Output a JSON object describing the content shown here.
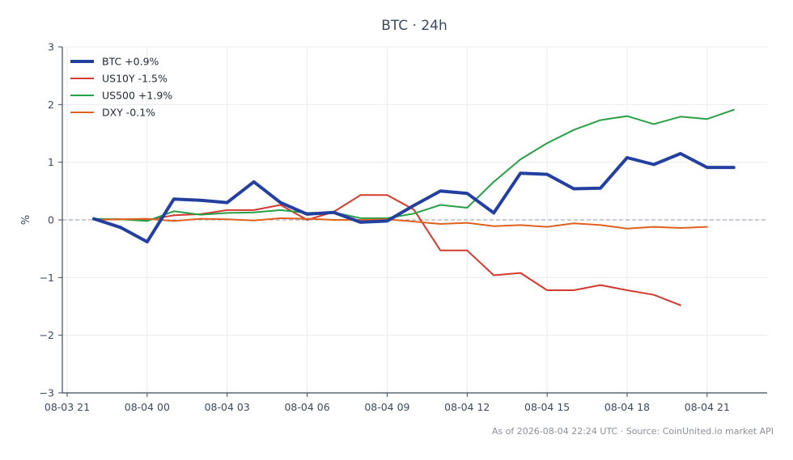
{
  "chart_data": {
    "type": "line",
    "title": "BTC · 24h",
    "xlabel": "",
    "ylabel": "%",
    "ylim": [
      -3,
      3
    ],
    "yticks": [
      3,
      2,
      1,
      0,
      -1,
      -2,
      -3
    ],
    "ytick_labels": [
      "3",
      "2",
      "1",
      "0",
      "−1",
      "−2",
      "−3"
    ],
    "x_range": [
      "2026-08-03 21:00",
      "2026-08-04 23:15"
    ],
    "xticks": [
      {
        "time": "2026-08-03 21:00",
        "label": "08-03 21"
      },
      {
        "time": "2026-08-04 00:00",
        "label": "08-04 00"
      },
      {
        "time": "2026-08-04 03:00",
        "label": "08-04 03"
      },
      {
        "time": "2026-08-04 06:00",
        "label": "08-04 06"
      },
      {
        "time": "2026-08-04 09:00",
        "label": "08-04 09"
      },
      {
        "time": "2026-08-04 12:00",
        "label": "08-04 12"
      },
      {
        "time": "2026-08-04 15:00",
        "label": "08-04 15"
      },
      {
        "time": "2026-08-04 18:00",
        "label": "08-04 18"
      },
      {
        "time": "2026-08-04 21:00",
        "label": "08-04 21"
      }
    ],
    "grid": true,
    "zero_line": "dashed",
    "legend_position": "top-left",
    "series": [
      {
        "name": "BTC +0.9%",
        "color": "#2340a0",
        "emphasis": "thick",
        "points": [
          [
            "2026-08-03 22:00",
            0.02
          ],
          [
            "2026-08-03 23:00",
            -0.13
          ],
          [
            "2026-08-04 00:00",
            -0.38
          ],
          [
            "2026-08-04 01:00",
            0.36
          ],
          [
            "2026-08-04 02:00",
            0.34
          ],
          [
            "2026-08-04 03:00",
            0.3
          ],
          [
            "2026-08-04 04:00",
            0.66
          ],
          [
            "2026-08-04 05:00",
            0.3
          ],
          [
            "2026-08-04 06:00",
            0.1
          ],
          [
            "2026-08-04 07:00",
            0.13
          ],
          [
            "2026-08-04 08:00",
            -0.04
          ],
          [
            "2026-08-04 09:00",
            -0.02
          ],
          [
            "2026-08-04 10:00",
            0.25
          ],
          [
            "2026-08-04 11:00",
            0.5
          ],
          [
            "2026-08-04 12:00",
            0.46
          ],
          [
            "2026-08-04 13:00",
            0.12
          ],
          [
            "2026-08-04 14:00",
            0.81
          ],
          [
            "2026-08-04 15:00",
            0.79
          ],
          [
            "2026-08-04 16:00",
            0.54
          ],
          [
            "2026-08-04 17:00",
            0.55
          ],
          [
            "2026-08-04 18:00",
            1.08
          ],
          [
            "2026-08-04 19:00",
            0.96
          ],
          [
            "2026-08-04 20:00",
            1.15
          ],
          [
            "2026-08-04 21:00",
            0.91
          ],
          [
            "2026-08-04 22:00",
            0.91
          ]
        ]
      },
      {
        "name": "US10Y -1.5%",
        "color": "#d33a2f",
        "emphasis": "normal",
        "points": [
          [
            "2026-08-03 22:00",
            0.01
          ],
          [
            "2026-08-03 23:00",
            0.01
          ],
          [
            "2026-08-04 00:00",
            0.0
          ],
          [
            "2026-08-04 01:00",
            0.08
          ],
          [
            "2026-08-04 02:00",
            0.1
          ],
          [
            "2026-08-04 03:00",
            0.17
          ],
          [
            "2026-08-04 04:00",
            0.17
          ],
          [
            "2026-08-04 05:00",
            0.26
          ],
          [
            "2026-08-04 06:00",
            0.0
          ],
          [
            "2026-08-04 07:00",
            0.14
          ],
          [
            "2026-08-04 08:00",
            0.43
          ],
          [
            "2026-08-04 09:00",
            0.43
          ],
          [
            "2026-08-04 10:00",
            0.18
          ],
          [
            "2026-08-04 11:00",
            -0.53
          ],
          [
            "2026-08-04 12:00",
            -0.53
          ],
          [
            "2026-08-04 13:00",
            -0.96
          ],
          [
            "2026-08-04 14:00",
            -0.92
          ],
          [
            "2026-08-04 15:00",
            -1.22
          ],
          [
            "2026-08-04 16:00",
            -1.22
          ],
          [
            "2026-08-04 17:00",
            -1.13
          ],
          [
            "2026-08-04 18:00",
            -1.22
          ],
          [
            "2026-08-04 19:00",
            -1.3
          ],
          [
            "2026-08-04 20:00",
            -1.48
          ]
        ]
      },
      {
        "name": "US500 +1.9%",
        "color": "#27a046",
        "emphasis": "normal",
        "points": [
          [
            "2026-08-03 22:00",
            0.02
          ],
          [
            "2026-08-03 23:00",
            0.01
          ],
          [
            "2026-08-04 00:00",
            -0.02
          ],
          [
            "2026-08-04 01:00",
            0.15
          ],
          [
            "2026-08-04 02:00",
            0.09
          ],
          [
            "2026-08-04 03:00",
            0.12
          ],
          [
            "2026-08-04 04:00",
            0.13
          ],
          [
            "2026-08-04 05:00",
            0.17
          ],
          [
            "2026-08-04 06:00",
            0.12
          ],
          [
            "2026-08-04 07:00",
            0.13
          ],
          [
            "2026-08-04 08:00",
            0.03
          ],
          [
            "2026-08-04 09:00",
            0.03
          ],
          [
            "2026-08-04 10:00",
            0.11
          ],
          [
            "2026-08-04 11:00",
            0.26
          ],
          [
            "2026-08-04 12:00",
            0.21
          ],
          [
            "2026-08-04 13:00",
            0.66
          ],
          [
            "2026-08-04 14:00",
            1.05
          ],
          [
            "2026-08-04 15:00",
            1.33
          ],
          [
            "2026-08-04 16:00",
            1.56
          ],
          [
            "2026-08-04 17:00",
            1.73
          ],
          [
            "2026-08-04 18:00",
            1.8
          ],
          [
            "2026-08-04 19:00",
            1.66
          ],
          [
            "2026-08-04 20:00",
            1.79
          ],
          [
            "2026-08-04 21:00",
            1.75
          ],
          [
            "2026-08-04 22:00",
            1.91
          ]
        ]
      },
      {
        "name": "DXY -0.1%",
        "color": "#e0611e",
        "emphasis": "normal",
        "points": [
          [
            "2026-08-03 22:00",
            0.0
          ],
          [
            "2026-08-03 23:00",
            0.01
          ],
          [
            "2026-08-04 00:00",
            0.02
          ],
          [
            "2026-08-04 01:00",
            -0.02
          ],
          [
            "2026-08-04 02:00",
            0.02
          ],
          [
            "2026-08-04 03:00",
            0.01
          ],
          [
            "2026-08-04 04:00",
            -0.01
          ],
          [
            "2026-08-04 05:00",
            0.03
          ],
          [
            "2026-08-04 06:00",
            0.02
          ],
          [
            "2026-08-04 07:00",
            0.0
          ],
          [
            "2026-08-04 08:00",
            0.0
          ],
          [
            "2026-08-04 09:00",
            0.01
          ],
          [
            "2026-08-04 10:00",
            -0.03
          ],
          [
            "2026-08-04 11:00",
            -0.07
          ],
          [
            "2026-08-04 12:00",
            -0.05
          ],
          [
            "2026-08-04 13:00",
            -0.11
          ],
          [
            "2026-08-04 14:00",
            -0.09
          ],
          [
            "2026-08-04 15:00",
            -0.12
          ],
          [
            "2026-08-04 16:00",
            -0.06
          ],
          [
            "2026-08-04 17:00",
            -0.09
          ],
          [
            "2026-08-04 18:00",
            -0.15
          ],
          [
            "2026-08-04 19:00",
            -0.12
          ],
          [
            "2026-08-04 20:00",
            -0.14
          ],
          [
            "2026-08-04 21:00",
            -0.12
          ]
        ]
      }
    ],
    "footer": "As of 2026-08-04 22:24 UTC · Source: CoinUnited.io market API"
  },
  "colors": {
    "axis": "#3b4a5e",
    "grid": "#e9ecf0",
    "zero_line": "#8f97a8"
  }
}
